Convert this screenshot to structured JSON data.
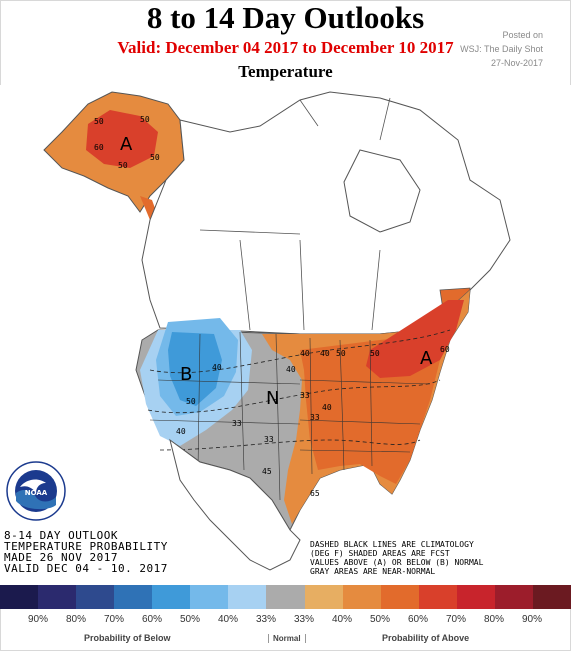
{
  "header": {
    "title": "8 to 14 Day Outlooks",
    "valid": "Valid: December 04 2017 to December 10 2017",
    "subtitle": "Temperature",
    "posted_on": "Posted on",
    "source": "WSJ: The Daily Shot",
    "posted_date": "27-Nov-2017"
  },
  "map": {
    "outlook_lines": [
      "8-14 DAY OUTLOOK",
      "TEMPERATURE PROBABILITY",
      "MADE  26 NOV 2017",
      "VALID  DEC 04 - 10. 2017"
    ],
    "note_lines": [
      "DASHED BLACK LINES ARE CLIMATOLOGY",
      "(DEG F) SHADED AREAS ARE FCST",
      "VALUES ABOVE (A) OR BELOW (B) NORMAL",
      "GRAY AREAS ARE NEAR-NORMAL"
    ],
    "region_letters": {
      "alaska_above": "A",
      "west_below": "B",
      "central_normal": "N",
      "east_above": "A"
    },
    "contour_labels": [
      "50",
      "50",
      "60",
      "50",
      "50",
      "40",
      "50",
      "40",
      "33",
      "40",
      "33",
      "50",
      "40",
      "60",
      "33",
      "40",
      "33",
      "45",
      "65",
      "40",
      "50"
    ],
    "logo_text": "NOAA"
  },
  "legend": {
    "colors": [
      "#1b1a4d",
      "#2b2a6e",
      "#2e4a8e",
      "#2f72b6",
      "#3f9ad9",
      "#74b9ea",
      "#a7d1f2",
      "#ababab",
      "#e7ae62",
      "#e58b3f",
      "#e26b2c",
      "#d9402b",
      "#c8242c",
      "#9c1d2b",
      "#6b1a21"
    ],
    "percents": [
      "90%",
      "80%",
      "70%",
      "60%",
      "50%",
      "40%",
      "33%",
      "33%",
      "40%",
      "50%",
      "60%",
      "70%",
      "80%",
      "90%"
    ],
    "below_label": "Probability of Below",
    "normal_label": "Normal",
    "above_label": "Probability of Above"
  }
}
